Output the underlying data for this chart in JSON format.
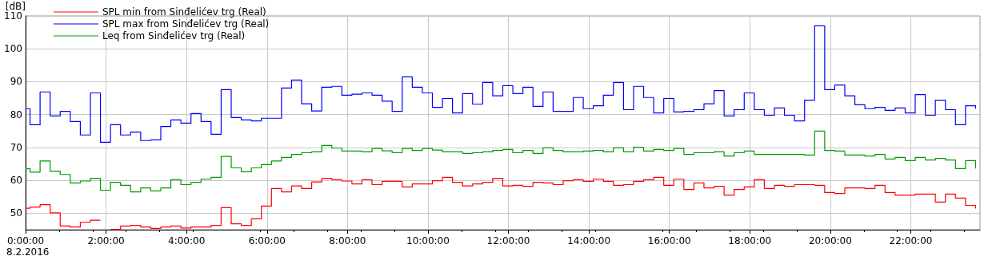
{
  "chart_data": {
    "type": "step",
    "ylabel": "[dB]",
    "annotations": [
      "8.2.2016"
    ],
    "x": [
      0,
      0.11,
      0.36,
      0.61,
      0.86,
      1.11,
      1.36,
      1.61,
      1.86,
      2.11,
      2.36,
      2.61,
      2.86,
      3.11,
      3.36,
      3.61,
      3.86,
      4.11,
      4.36,
      4.61,
      4.86,
      5.11,
      5.36,
      5.61,
      5.86,
      6.11,
      6.36,
      6.61,
      6.86,
      7.11,
      7.36,
      7.61,
      7.86,
      8.11,
      8.36,
      8.61,
      8.86,
      9.11,
      9.36,
      9.61,
      9.86,
      10.11,
      10.36,
      10.61,
      10.86,
      11.11,
      11.36,
      11.61,
      11.86,
      12.11,
      12.36,
      12.61,
      12.86,
      13.11,
      13.36,
      13.61,
      13.86,
      14.11,
      14.36,
      14.61,
      14.86,
      15.11,
      15.36,
      15.61,
      15.86,
      16.11,
      16.36,
      16.61,
      16.86,
      17.11,
      17.36,
      17.61,
      17.86,
      18.11,
      18.36,
      18.61,
      18.86,
      19.11,
      19.36,
      19.61,
      19.86,
      20.11,
      20.36,
      20.61,
      20.86,
      21.11,
      21.36,
      21.61,
      21.86,
      22.11,
      22.36,
      22.61,
      22.86,
      23.11,
      23.36,
      23.61
    ],
    "series": [
      {
        "name": "SPL min from Sinđelićev trg (Real)",
        "color": "#ff0000",
        "values": [
          51.5,
          51.9,
          52.6,
          50.1,
          46.1,
          45.8,
          47.3,
          47.9,
          null,
          45.1,
          46.1,
          46.3,
          45.8,
          45.4,
          45.8,
          46.1,
          45.5,
          45.8,
          45.8,
          46.3,
          51.7,
          46.8,
          46.3,
          48.3,
          52.2,
          57.5,
          56.5,
          58.3,
          57.5,
          59.5,
          60.6,
          60.2,
          59.8,
          58.9,
          60.2,
          58.7,
          59.7,
          59.7,
          58.0,
          58.9,
          58.9,
          59.9,
          60.9,
          59.4,
          58.3,
          58.9,
          59.4,
          60.6,
          58.3,
          58.5,
          58.2,
          59.4,
          59.2,
          58.7,
          59.9,
          60.2,
          59.7,
          60.4,
          59.7,
          58.5,
          58.7,
          59.7,
          60.2,
          60.9,
          58.5,
          60.4,
          57.2,
          59.2,
          57.7,
          58.2,
          55.5,
          57.2,
          58.0,
          60.2,
          57.5,
          58.5,
          58.2,
          58.7,
          58.7,
          58.5,
          56.3,
          56.0,
          57.7,
          57.7,
          57.5,
          58.5,
          56.3,
          55.5,
          55.5,
          55.8,
          55.8,
          53.4,
          55.8,
          54.6,
          52.4,
          51.4
        ]
      },
      {
        "name": "SPL max from Sinđelićev trg (Real)",
        "color": "#0000ff",
        "values": [
          81.8,
          76.9,
          86.9,
          79.6,
          81.0,
          77.9,
          73.8,
          86.6,
          71.6,
          76.9,
          73.8,
          74.7,
          72.1,
          72.3,
          76.4,
          78.4,
          77.4,
          80.3,
          77.9,
          74.0,
          87.6,
          79.1,
          78.4,
          78.1,
          78.9,
          78.9,
          88.1,
          90.5,
          83.3,
          81.1,
          88.3,
          88.6,
          85.9,
          86.2,
          86.6,
          85.9,
          84.1,
          81.0,
          91.5,
          88.3,
          86.6,
          82.2,
          84.9,
          80.5,
          86.4,
          83.2,
          89.8,
          85.7,
          88.8,
          86.4,
          88.3,
          82.5,
          86.9,
          81.0,
          81.0,
          85.2,
          81.8,
          82.7,
          85.9,
          89.8,
          81.5,
          88.6,
          85.2,
          80.5,
          84.9,
          80.8,
          81.0,
          81.5,
          83.3,
          87.3,
          79.6,
          81.5,
          86.6,
          81.5,
          79.8,
          82.0,
          79.8,
          78.1,
          84.4,
          107.0,
          87.6,
          89.0,
          85.7,
          83.0,
          81.8,
          82.2,
          81.3,
          82.0,
          80.5,
          86.1,
          79.8,
          84.4,
          81.5,
          76.9,
          82.7,
          81.8
        ]
      },
      {
        "name": "Leq from Sinđelićev trg (Real)",
        "color": "#009900",
        "values": [
          63.5,
          62.5,
          65.9,
          62.8,
          61.8,
          59.2,
          59.8,
          60.6,
          57.0,
          59.4,
          58.5,
          56.5,
          57.7,
          56.8,
          57.7,
          60.2,
          58.7,
          59.4,
          60.4,
          60.9,
          67.3,
          63.8,
          62.6,
          63.8,
          64.8,
          65.9,
          67.0,
          67.9,
          68.4,
          68.7,
          70.6,
          69.8,
          68.9,
          68.9,
          68.7,
          69.7,
          69.0,
          68.4,
          69.7,
          69.1,
          69.7,
          69.2,
          68.7,
          68.7,
          68.2,
          68.4,
          68.7,
          69.1,
          69.4,
          68.4,
          69.1,
          68.2,
          69.9,
          69.1,
          68.7,
          68.7,
          68.9,
          69.1,
          68.7,
          69.9,
          68.7,
          70.1,
          68.9,
          69.4,
          69.1,
          69.7,
          67.9,
          68.4,
          68.4,
          68.7,
          67.4,
          68.4,
          68.9,
          67.9,
          67.9,
          67.9,
          67.9,
          67.9,
          67.7,
          75.0,
          69.1,
          68.9,
          67.7,
          67.7,
          67.4,
          67.9,
          66.5,
          67.0,
          66.0,
          67.0,
          66.2,
          66.7,
          66.2,
          63.6,
          66.0,
          63.6
        ]
      }
    ],
    "xlim": [
      0,
      23.72
    ],
    "xticks": [
      {
        "value": 0,
        "label": "0:00:00"
      },
      {
        "value": 2,
        "label": "2:00:00"
      },
      {
        "value": 4,
        "label": "4:00:00"
      },
      {
        "value": 6,
        "label": "6:00:00"
      },
      {
        "value": 8,
        "label": "8:00:00"
      },
      {
        "value": 10,
        "label": "10:00:00"
      },
      {
        "value": 12,
        "label": "12:00:00"
      },
      {
        "value": 14,
        "label": "14:00:00"
      },
      {
        "value": 16,
        "label": "16:00:00"
      },
      {
        "value": 18,
        "label": "18:00:00"
      },
      {
        "value": 20,
        "label": "20:00:00"
      },
      {
        "value": 22,
        "label": "22:00:00"
      }
    ],
    "ylim": [
      45,
      110
    ],
    "yticks": [
      50,
      60,
      70,
      80,
      90,
      100,
      110
    ],
    "grid": true,
    "legend": "top left",
    "line_style": "solid"
  }
}
